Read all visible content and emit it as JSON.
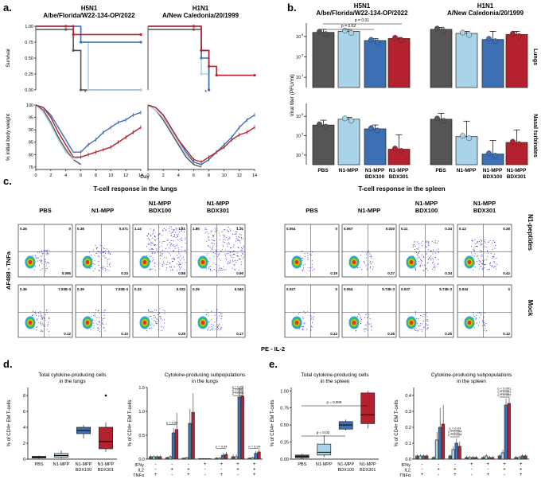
{
  "panels": {
    "a": "a.",
    "b": "b.",
    "c": "c.",
    "d": "d.",
    "e": "e."
  },
  "colors": {
    "pbs": "#555555",
    "n1mpp": "#a8d3e8",
    "bdx100": "#3d6fb5",
    "bdx301": "#b5212e",
    "flow_hot": "#e8241e",
    "flow_warm": "#f5c400",
    "flow_mid": "#2cc94a",
    "flow_cool": "#1a9ae0",
    "flow_dot": "#2a22d6"
  },
  "strains": {
    "h5n1_line1": "H5N1",
    "h5n1_line2": "A/be/Florida/W22-134-OP/2022",
    "h1n1_line1": "H1N1",
    "h1n1_line2": "A/New Caledonia/20/1999"
  },
  "groups": [
    "PBS",
    "N1-MPP",
    "N1-MPP BDX100",
    "N1-MPP BDX301"
  ],
  "group_lines": [
    [
      "PBS"
    ],
    [
      "N1-MPP"
    ],
    [
      "N1-MPP",
      "BDX100"
    ],
    [
      "N1-MPP",
      "BDX301"
    ]
  ],
  "chart_data": [
    {
      "id": "a_survival_h5n1",
      "type": "line",
      "ylabel": "Survival",
      "ylim": [
        0,
        1
      ],
      "yticks": [
        "0.00",
        "0.25",
        "0.50",
        "0.75",
        "1.00"
      ],
      "xlim": [
        0,
        14
      ],
      "series": [
        {
          "name": "PBS",
          "x": [
            0,
            4,
            5,
            6,
            14
          ],
          "y": [
            0.95,
            0.95,
            0.62,
            0.0,
            0.0
          ]
        },
        {
          "name": "N1-MPP",
          "x": [
            0,
            5,
            6,
            7,
            14
          ],
          "y": [
            1.0,
            1.0,
            0.75,
            0.0,
            0.0
          ]
        },
        {
          "name": "N1-MPP BDX100",
          "x": [
            0,
            5,
            6,
            14
          ],
          "y": [
            1.0,
            1.0,
            0.75,
            0.75
          ]
        },
        {
          "name": "N1-MPP BDX301",
          "x": [
            0,
            4,
            5,
            14
          ],
          "y": [
            1.0,
            1.0,
            0.87,
            0.87
          ]
        }
      ],
      "annotation": "*"
    },
    {
      "id": "a_survival_h1n1",
      "type": "line",
      "ylim": [
        0,
        1
      ],
      "xlim": [
        0,
        14
      ],
      "series": [
        {
          "name": "PBS",
          "x": [
            0,
            6,
            7,
            8
          ],
          "y": [
            0.95,
            0.95,
            0.62,
            0.0
          ]
        },
        {
          "name": "N1-MPP",
          "x": [
            0,
            6,
            7,
            8
          ],
          "y": [
            1.0,
            1.0,
            0.25,
            0.0
          ]
        },
        {
          "name": "N1-MPP BDX100",
          "x": [
            0,
            6,
            7,
            8
          ],
          "y": [
            1.0,
            1.0,
            0.5,
            0.0
          ]
        },
        {
          "name": "N1-MPP BDX301",
          "x": [
            0,
            6,
            7,
            8,
            9,
            14
          ],
          "y": [
            1.0,
            1.0,
            0.62,
            0.37,
            0.23,
            0.23
          ]
        }
      ],
      "annotation": "*"
    },
    {
      "id": "a_weight_h5n1",
      "type": "line",
      "ylabel": "% initial body weight",
      "xlabel": "Day",
      "ylim": [
        74,
        100
      ],
      "yticks": [
        75,
        80,
        85,
        90,
        95,
        100
      ],
      "xticks": [
        0,
        2,
        4,
        6,
        8,
        10,
        12,
        14
      ],
      "series": [
        {
          "name": "PBS",
          "x": [
            0,
            1,
            2,
            3,
            4,
            5,
            6
          ],
          "y": [
            100,
            98,
            93,
            87,
            82,
            78,
            76
          ]
        },
        {
          "name": "N1-MPP",
          "x": [
            0,
            1,
            2,
            3,
            4,
            5,
            6
          ],
          "y": [
            100,
            97,
            92,
            86,
            81,
            78,
            79
          ]
        },
        {
          "name": "N1-MPP BDX100",
          "x": [
            0,
            1,
            2,
            3,
            4,
            5,
            6,
            7,
            8,
            9,
            10,
            11,
            12,
            13,
            14
          ],
          "y": [
            100,
            99,
            96,
            91,
            86,
            81,
            81,
            84,
            86,
            89,
            91,
            93,
            94,
            96,
            97
          ]
        },
        {
          "name": "N1-MPP BDX301",
          "x": [
            0,
            1,
            2,
            3,
            4,
            5,
            6,
            7,
            8,
            9,
            10,
            11,
            12,
            13,
            14
          ],
          "y": [
            100,
            99,
            95,
            89,
            84,
            79,
            79,
            80,
            81,
            82,
            83,
            85,
            87,
            89,
            91
          ]
        }
      ]
    },
    {
      "id": "a_weight_h1n1",
      "type": "line",
      "ylim": [
        74,
        100
      ],
      "xticks": [
        0,
        2,
        4,
        6,
        8,
        10,
        12,
        14
      ],
      "series": [
        {
          "name": "PBS",
          "x": [
            0,
            1,
            2,
            3,
            4,
            5,
            6,
            7
          ],
          "y": [
            100,
            98,
            94,
            89,
            84,
            79,
            76,
            75
          ]
        },
        {
          "name": "N1-MPP",
          "x": [
            0,
            1,
            2,
            3,
            4,
            5,
            6,
            7
          ],
          "y": [
            100,
            98,
            95,
            90,
            85,
            80,
            77,
            76
          ]
        },
        {
          "name": "N1-MPP BDX100",
          "x": [
            0,
            1,
            2,
            3,
            4,
            5,
            6,
            7,
            8,
            9,
            10,
            11,
            12,
            13,
            14
          ],
          "y": [
            100,
            99,
            96,
            91,
            86,
            81,
            77,
            76,
            78,
            81,
            84,
            87,
            91,
            94,
            96
          ]
        },
        {
          "name": "N1-MPP BDX301",
          "x": [
            0,
            1,
            2,
            3,
            4,
            5,
            6,
            7,
            8,
            9,
            10,
            11,
            12,
            13,
            14
          ],
          "y": [
            100,
            99,
            96,
            91,
            86,
            82,
            78,
            77,
            79,
            81,
            83,
            86,
            88,
            89,
            91
          ]
        }
      ]
    },
    {
      "id": "b_lungs",
      "type": "bar",
      "ylabel": "Viral titer (PFU/ml)",
      "side_label": "Lungs",
      "yscale": "log10",
      "ylim_log": [
        0,
        6
      ],
      "yticks": [
        "10",
        "10",
        "10"
      ],
      "ytick_exps": [
        "1",
        "3",
        "5"
      ],
      "h5n1_values_log": [
        5.4,
        5.5,
        4.6,
        4.8
      ],
      "h1n1_values_log": [
        5.7,
        5.3,
        4.7,
        5.2
      ],
      "h5n1_errors_log": [
        0.3,
        0.2,
        0.2,
        0.1
      ],
      "h1n1_errors_log": [
        0.2,
        0.2,
        0.8,
        0.3
      ],
      "pvalues": [
        "p = 0.01",
        "p = 0.02"
      ]
    },
    {
      "id": "b_nasal",
      "type": "bar",
      "side_label": "Nasal turbinates",
      "yscale": "log10",
      "ylim_log": [
        0,
        6
      ],
      "yticks": [
        "10",
        "10",
        "10"
      ],
      "ytick_exps": [
        "1",
        "3",
        "5"
      ],
      "h5n1_values_log": [
        4.1,
        4.7,
        3.7,
        1.6
      ],
      "h1n1_values_log": [
        4.7,
        2.9,
        1.1,
        2.3
      ],
      "h5n1_errors_log": [
        0.5,
        0.2,
        0.4,
        1.5
      ],
      "h1n1_errors_log": [
        0.6,
        1.6,
        1.4,
        1.3
      ]
    },
    {
      "id": "c_flow",
      "type": "scatter",
      "title_lungs": "T-cell response in the lungs",
      "title_spleen": "T-cell response in the spleen",
      "ylabel": "AF488 - TNFa",
      "xlabel": "PE - IL-2",
      "row_labels": [
        "N1-peptides",
        "Mock"
      ],
      "lungs": [
        {
          "group": "PBS",
          "row": 0,
          "q_ul": "0.26",
          "q_ur": "0",
          "q_lr": "0.095",
          "density": 0.2
        },
        {
          "group": "N1-MPP",
          "row": 0,
          "q_ul": "0.38",
          "q_ur": "0.071",
          "q_lr": "0.33",
          "density": 0.35
        },
        {
          "group": "N1-MPP BDX100",
          "row": 0,
          "q_ul": "1.14",
          "q_ur": "1.61",
          "q_lr": "0.88",
          "density": 1.0
        },
        {
          "group": "N1-MPP BDX301",
          "row": 0,
          "q_ul": "1.85",
          "q_ur": "1.31",
          "q_lr": "0.90",
          "density": 1.0
        },
        {
          "group": "PBS",
          "row": 1,
          "q_ul": "0.36",
          "q_ur": "7.93E-3",
          "q_lr": "0.12",
          "density": 0.2
        },
        {
          "group": "N1-MPP",
          "row": 1,
          "q_ul": "0.39",
          "q_ur": "7.93E-3",
          "q_lr": "0.10",
          "density": 0.2
        },
        {
          "group": "N1-MPP BDX100",
          "row": 1,
          "q_ul": "0.32",
          "q_ur": "0.032",
          "q_lr": "0.29",
          "density": 0.25
        },
        {
          "group": "N1-MPP BDX301",
          "row": 1,
          "q_ul": "0.29",
          "q_ur": "0.040",
          "q_lr": "0.17",
          "density": 0.22
        }
      ],
      "spleen": [
        {
          "group": "PBS",
          "row": 0,
          "q_ul": "0.054",
          "q_ur": "0",
          "q_lr": "0.19",
          "density": 0.15
        },
        {
          "group": "N1-MPP",
          "row": 0,
          "q_ul": "0.067",
          "q_ur": "0.020",
          "q_lr": "0.27",
          "density": 0.2
        },
        {
          "group": "N1-MPP BDX100",
          "row": 0,
          "q_ul": "0.11",
          "q_ur": "0.34",
          "q_lr": "0.34",
          "density": 0.5
        },
        {
          "group": "N1-MPP BDX301",
          "row": 0,
          "q_ul": "0.12",
          "q_ur": "0.38",
          "q_lr": "0.42",
          "density": 0.55
        },
        {
          "group": "PBS",
          "row": 1,
          "q_ul": "0.027",
          "q_ur": "0",
          "q_lr": "0.12",
          "density": 0.15
        },
        {
          "group": "N1-MPP",
          "row": 1,
          "q_ul": "0.054",
          "q_ur": "5.73E-3",
          "q_lr": "0.26",
          "density": 0.15
        },
        {
          "group": "N1-MPP BDX100",
          "row": 1,
          "q_ul": "0.037",
          "q_ur": "5.73E-3",
          "q_lr": "0.25",
          "density": 0.15
        },
        {
          "group": "N1-MPP BDX301",
          "row": 1,
          "q_ul": "0.034",
          "q_ur": "0",
          "q_lr": "0.12",
          "density": 0.15
        }
      ]
    },
    {
      "id": "d_total",
      "type": "box",
      "title": [
        "Total cytokine-producing cells",
        "in the lungs"
      ],
      "ylabel": "% of CD4+ EM T-cells",
      "ylim": [
        0,
        9
      ],
      "yticks": [
        0,
        2,
        4,
        6,
        8
      ],
      "boxes": [
        {
          "group": "PBS",
          "min": 0.05,
          "q1": 0.15,
          "median": 0.25,
          "q3": 0.35,
          "max": 0.45
        },
        {
          "group": "N1-MPP",
          "min": 0.1,
          "q1": 0.25,
          "median": 0.45,
          "q3": 0.7,
          "max": 1.1
        },
        {
          "group": "N1-MPP BDX100",
          "min": 2.6,
          "q1": 3.2,
          "median": 3.6,
          "q3": 4.0,
          "max": 4.3
        },
        {
          "group": "N1-MPP BDX301",
          "min": 0.9,
          "q1": 1.3,
          "median": 2.2,
          "q3": 4.0,
          "max": 4.6,
          "outliers": [
            8.0
          ]
        }
      ]
    },
    {
      "id": "d_subpop",
      "type": "bar",
      "title": [
        "Cytokine-producing subpopulations",
        "in the lungs"
      ],
      "ylabel": "% of CD4+ EM T-cells",
      "ylim": [
        0,
        1.5
      ],
      "yticks": [
        "0.0",
        "0.5",
        "1.0",
        "1.5"
      ],
      "row_labels": [
        "IFNγ",
        "IL2",
        "TNFα"
      ],
      "combos": [
        [
          "-",
          "-",
          "+"
        ],
        [
          "-",
          "+",
          "-"
        ],
        [
          "-",
          "+",
          "+"
        ],
        [
          "+",
          "-",
          "-"
        ],
        [
          "+",
          "-",
          "+"
        ],
        [
          "+",
          "+",
          "-"
        ],
        [
          "+",
          "+",
          "+"
        ]
      ],
      "values": [
        [
          0.05,
          0.05,
          0.05,
          0.05
        ],
        [
          0.03,
          0.05,
          0.55,
          0.62
        ],
        [
          0.02,
          0.03,
          0.75,
          0.98
        ],
        [
          0.01,
          0.01,
          0.01,
          0.01
        ],
        [
          0.02,
          0.02,
          0.08,
          0.1
        ],
        [
          0.05,
          0.05,
          1.3,
          1.32
        ],
        [
          0.02,
          0.03,
          0.12,
          0.15
        ]
      ],
      "errors": [
        [
          0.03,
          0.03,
          0.03,
          0.03
        ],
        [
          0.02,
          0.03,
          0.1,
          0.35
        ],
        [
          0.01,
          0.02,
          0.3,
          0.4
        ],
        [
          0.01,
          0.01,
          0.01,
          0.01
        ],
        [
          0.02,
          0.02,
          0.05,
          0.05
        ],
        [
          0.05,
          0.05,
          0.2,
          0.2
        ],
        [
          0.01,
          0.02,
          0.05,
          0.05
        ]
      ],
      "pvalues": [
        "p = 0.05",
        "p = 0.04",
        "p = 0.02",
        "p = 0.01",
        "p = 0.04",
        "p = 0.04"
      ]
    },
    {
      "id": "e_total",
      "type": "box",
      "title": [
        "Total cytokine-producing cells",
        "in the spleen"
      ],
      "ylabel": "% of CD4+ EM T-cells",
      "ylim": [
        0,
        1.05
      ],
      "yticks": [
        "0.00",
        "0.25",
        "0.50",
        "0.75",
        "1.00"
      ],
      "boxes": [
        {
          "group": "PBS",
          "min": 0.0,
          "q1": 0.02,
          "median": 0.04,
          "q3": 0.06,
          "max": 0.08
        },
        {
          "group": "N1-MPP",
          "min": 0.03,
          "q1": 0.06,
          "median": 0.1,
          "q3": 0.22,
          "max": 0.35
        },
        {
          "group": "N1-MPP BDX100",
          "min": 0.42,
          "q1": 0.44,
          "median": 0.5,
          "q3": 0.55,
          "max": 0.58
        },
        {
          "group": "N1-MPP BDX301",
          "min": 0.45,
          "q1": 0.52,
          "median": 0.65,
          "q3": 0.97,
          "max": 1.0
        }
      ],
      "pvalues": [
        "p = 0.009",
        "p = 0.02"
      ]
    },
    {
      "id": "e_subpop",
      "type": "bar",
      "title": [
        "Cytokine-producing subpopulations",
        "in the spleen"
      ],
      "ylabel": "% of CD4+ EM T-cells",
      "ylim": [
        0,
        0.45
      ],
      "yticks": [
        "0.0",
        "0.1",
        "0.2",
        "0.3",
        "0.4"
      ],
      "row_labels": [
        "IFNγ",
        "IL2",
        "TNFα"
      ],
      "combos": [
        [
          "-",
          "-",
          "+"
        ],
        [
          "-",
          "+",
          "-"
        ],
        [
          "-",
          "+",
          "+"
        ],
        [
          "+",
          "-",
          "-"
        ],
        [
          "+",
          "-",
          "+"
        ],
        [
          "+",
          "+",
          "-"
        ],
        [
          "+",
          "+",
          "+"
        ]
      ],
      "values": [
        [
          0.02,
          0.02,
          0.02,
          0.02
        ],
        [
          0.01,
          0.12,
          0.2,
          0.22
        ],
        [
          0.02,
          0.06,
          0.1,
          0.08
        ],
        [
          0.01,
          0.01,
          0.01,
          0.01
        ],
        [
          0.01,
          0.02,
          0.01,
          0.01
        ],
        [
          0.02,
          0.04,
          0.34,
          0.35
        ],
        [
          0.01,
          0.01,
          0.02,
          0.02
        ]
      ],
      "errors": [
        [
          0.01,
          0.01,
          0.01,
          0.01
        ],
        [
          0.01,
          0.05,
          0.12,
          0.12
        ],
        [
          0.01,
          0.02,
          0.03,
          0.03
        ],
        [
          0.01,
          0.01,
          0.01,
          0.01
        ],
        [
          0.01,
          0.01,
          0.01,
          0.01
        ],
        [
          0.01,
          0.02,
          0.04,
          0.04
        ],
        [
          0.01,
          0.01,
          0.01,
          0.01
        ]
      ],
      "pvalues": [
        "p < 0.001",
        "p < 0.001",
        "p = 0.002",
        "p = 0.03",
        "p = 0.004",
        "p = 0.004"
      ]
    }
  ]
}
